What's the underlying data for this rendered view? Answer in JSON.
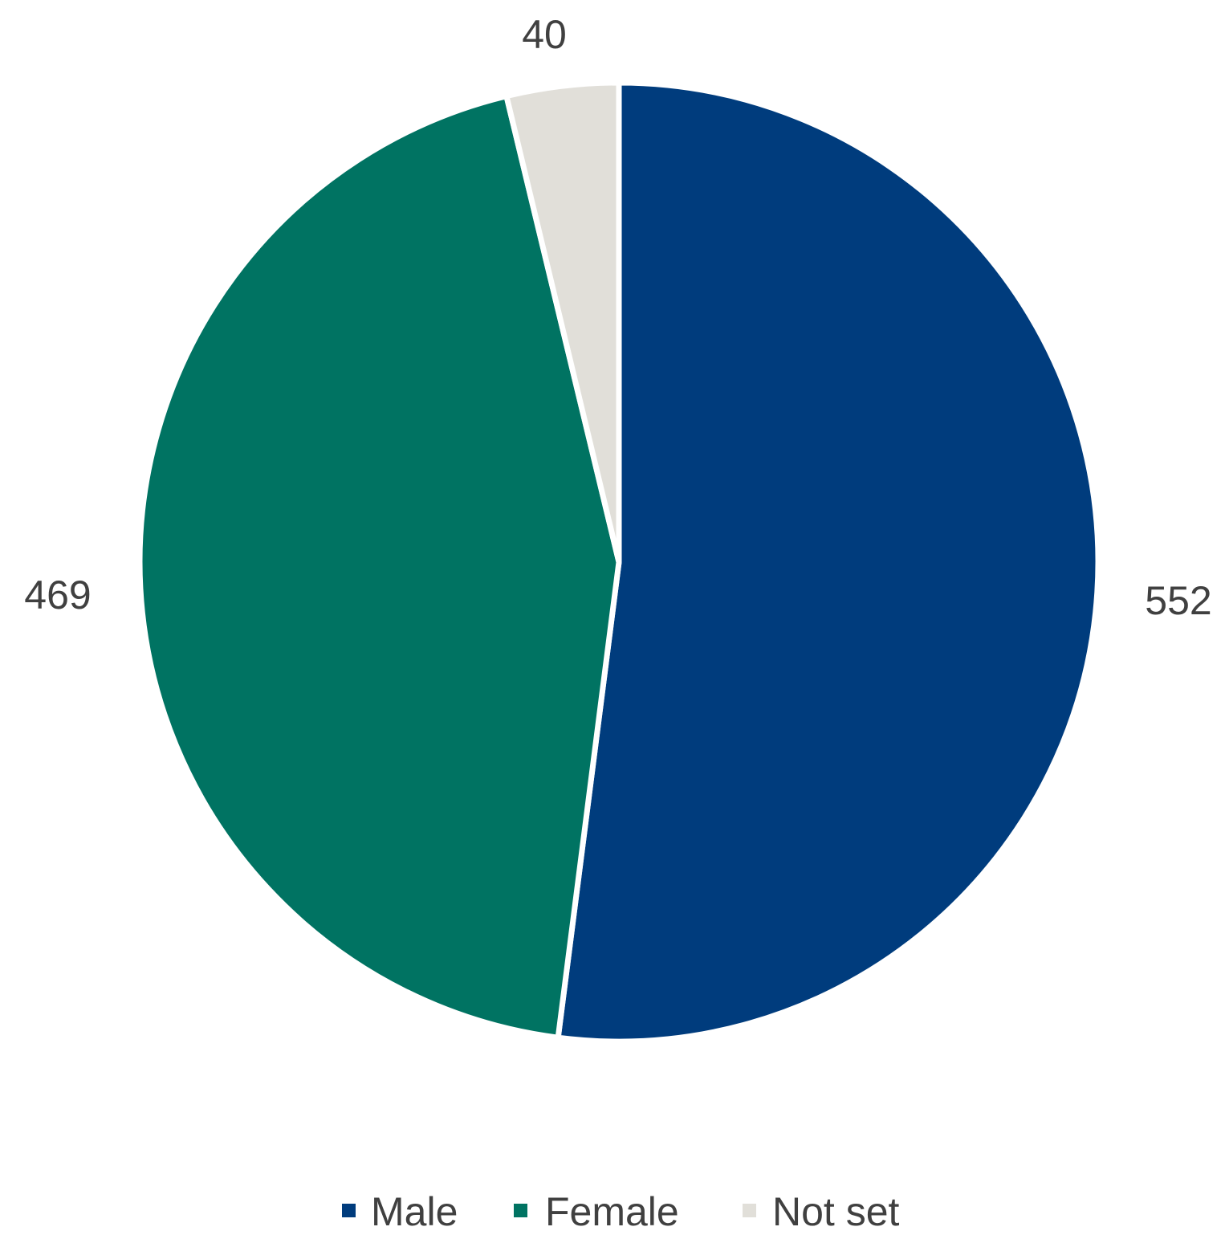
{
  "chart_data": {
    "type": "pie",
    "start_angle": "12 o'clock",
    "direction": "clockwise",
    "slices": [
      {
        "label": "Male",
        "value": 552,
        "color": "#003c7d"
      },
      {
        "label": "Female",
        "value": 469,
        "color": "#007362"
      },
      {
        "label": "Not set",
        "value": 40,
        "color": "#e1dfd9"
      }
    ],
    "data_labels": [
      "552",
      "469",
      "40"
    ],
    "legend": {
      "position": "bottom",
      "entries": [
        "Male",
        "Female",
        "Not set"
      ]
    }
  }
}
